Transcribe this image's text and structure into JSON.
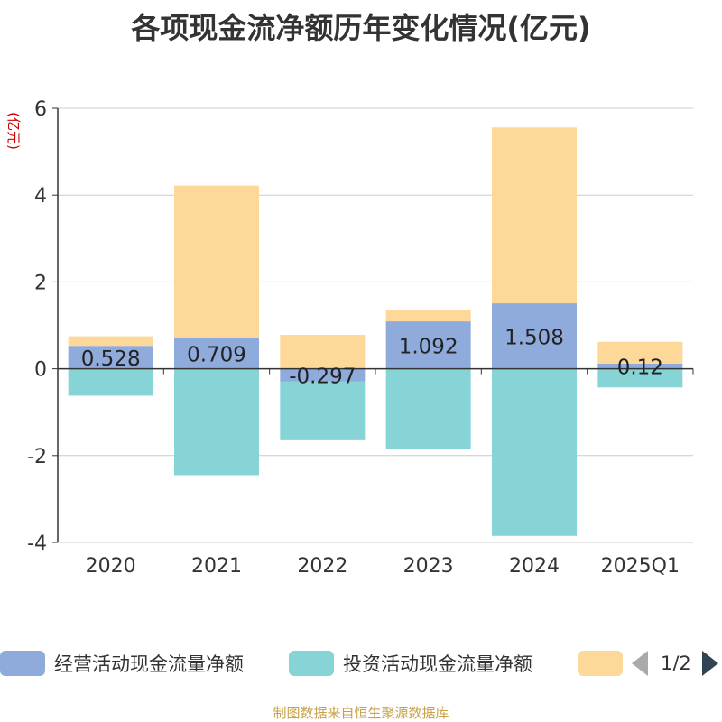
{
  "chart_data": {
    "type": "bar",
    "stacked": true,
    "title": "各项现金流净额历年变化情况(亿元)",
    "ylabel": "(亿元)",
    "xlabel": "",
    "categories": [
      "2020",
      "2021",
      "2022",
      "2023",
      "2024",
      "2025Q1"
    ],
    "ylim": [
      -4,
      6
    ],
    "yticks": [
      -4,
      -2,
      0,
      2,
      4,
      6
    ],
    "grid": true,
    "series": [
      {
        "name": "经营活动现金流量净额",
        "color": "#8eabdb",
        "values": [
          0.528,
          0.709,
          -0.297,
          1.092,
          1.508,
          0.12
        ],
        "labels": [
          "0.528",
          "0.709",
          "-0.297",
          "1.092",
          "1.508",
          "0.12"
        ]
      },
      {
        "name": "投资活动现金流量净额",
        "color": "#86d4d6",
        "values": [
          -0.62,
          -2.45,
          -1.33,
          -1.84,
          -3.85,
          -0.43
        ]
      },
      {
        "name": "",
        "color": "#fdd898",
        "values": [
          0.22,
          3.51,
          0.78,
          0.26,
          4.05,
          0.5
        ]
      }
    ]
  },
  "legend": {
    "items": [
      {
        "label": "经营活动现金流量净额",
        "color": "#8eabdb"
      },
      {
        "label": "投资活动现金流量净额",
        "color": "#86d4d6"
      },
      {
        "label": "",
        "color": "#fdd898"
      }
    ],
    "page": "1/2"
  },
  "source": "制图数据来自恒生聚源数据库"
}
